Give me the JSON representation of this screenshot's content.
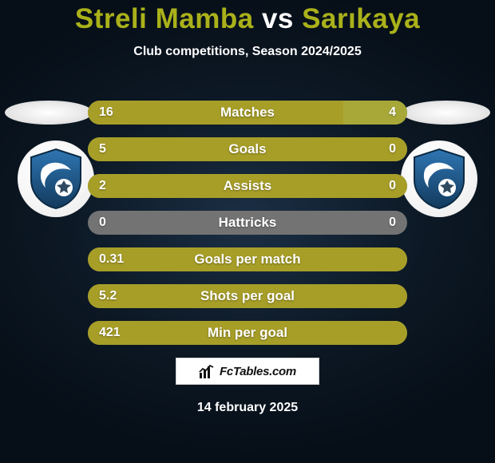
{
  "title": {
    "player1": "Streli Mamba",
    "vs": "vs",
    "player2": "Sarıkaya",
    "fontsize": 35
  },
  "subtitle": {
    "text": "Club competitions, Season 2024/2025",
    "fontsize": 16
  },
  "colors": {
    "accent_left": "#a79e28",
    "accent_right": "#a7a837",
    "neutral": "#737373",
    "bar_empty": "#737373",
    "row_text": "#ffffff",
    "stat_name_fontsize": 17,
    "value_fontsize": 16,
    "club_blue": "#2a6aa0",
    "club_blue_dark": "#123a5d"
  },
  "stats": [
    {
      "name": "Matches",
      "left_value": "16",
      "right_value": "4",
      "left_num": 16,
      "right_num": 4
    },
    {
      "name": "Goals",
      "left_value": "5",
      "right_value": "0",
      "left_num": 5,
      "right_num": 0
    },
    {
      "name": "Assists",
      "left_value": "2",
      "right_value": "0",
      "left_num": 2,
      "right_num": 0
    },
    {
      "name": "Hattricks",
      "left_value": "0",
      "right_value": "0",
      "left_num": 0,
      "right_num": 0
    },
    {
      "name": "Goals per match",
      "left_value": "0.31",
      "right_value": "",
      "left_num": 0.31,
      "right_num": 0
    },
    {
      "name": "Shots per goal",
      "left_value": "5.2",
      "right_value": "",
      "left_num": 5.2,
      "right_num": 0
    },
    {
      "name": "Min per goal",
      "left_value": "421",
      "right_value": "",
      "left_num": 421,
      "right_num": 0
    }
  ],
  "fctables": {
    "text": "FcTables.com",
    "fontsize": 15
  },
  "date": {
    "text": "14 february 2025",
    "fontsize": 16
  }
}
